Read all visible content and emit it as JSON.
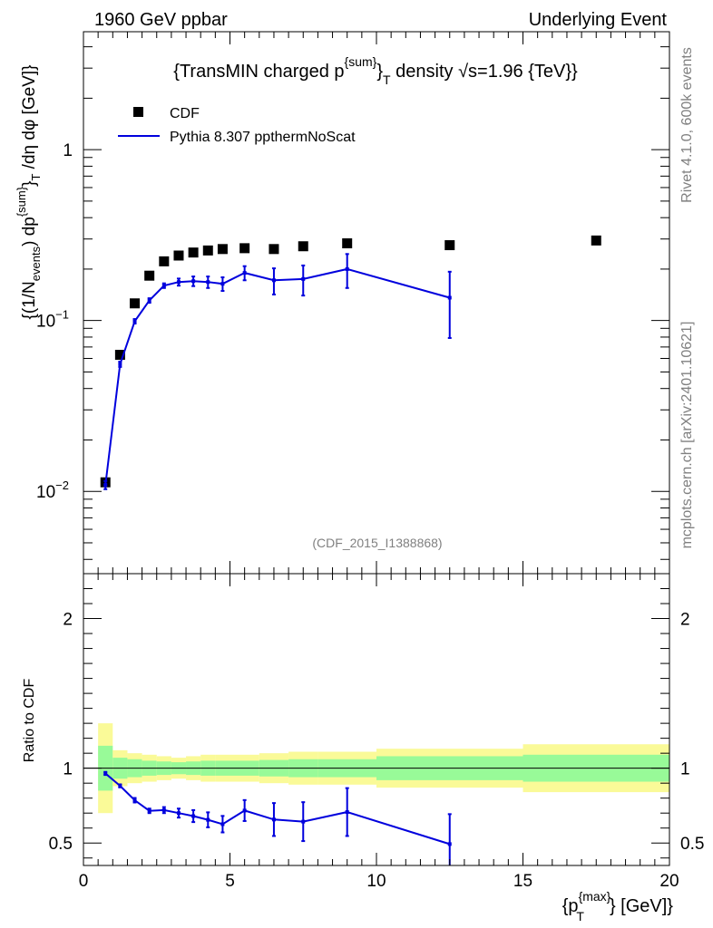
{
  "header": {
    "left": "1960 GeV ppbar",
    "right": "Underlying Event"
  },
  "side": {
    "rivet": "Rivet 4.1.0,  600k events",
    "mcplots": "mcplots.cern.ch [arXiv:2401.10621]"
  },
  "legend": {
    "cdf": "CDF",
    "pythia": "Pythia 8.307 ppthermNoScat"
  },
  "colors": {
    "mc": "#0000dd",
    "band_inner": "#98fa98",
    "band_outer": "#fafa98"
  },
  "chart_data": [
    {
      "type": "scatter",
      "title_parts": {
        "pre": "{TransMIN charged p",
        "sup": "{sum}",
        "mid": "}",
        "sub": "T",
        "post": " density ",
        "sqrt": "√s=1.96 {TeV}}"
      },
      "watermark": "(CDF_2015_I1388868)",
      "ylabel": "{(1/N_events) dp^{sum}}_T /dη dφ [GeV]}",
      "yscale": "log",
      "xlim": [
        0,
        20
      ],
      "ylim": [
        0.0033,
        4.9
      ],
      "ytick_labels": [
        "1",
        "10",
        "10"
      ],
      "ytick_exponents": [
        "",
        "−1",
        "−2"
      ],
      "series": [
        {
          "name": "CDF",
          "x": [
            0.75,
            1.25,
            1.75,
            2.25,
            2.75,
            3.25,
            3.75,
            4.25,
            4.75,
            5.5,
            6.5,
            7.5,
            9.0,
            12.5,
            17.5
          ],
          "y": [
            0.0113,
            0.063,
            0.126,
            0.183,
            0.222,
            0.24,
            0.25,
            0.257,
            0.262,
            0.265,
            0.262,
            0.272,
            0.283,
            0.276,
            0.294
          ]
        },
        {
          "name": "Pythia 8.307 ppthermNoScat",
          "x": [
            0.75,
            1.25,
            1.75,
            2.25,
            2.75,
            3.25,
            3.75,
            4.25,
            4.75,
            5.5,
            6.5,
            7.5,
            9.0,
            12.5
          ],
          "y": [
            0.0109,
            0.0555,
            0.099,
            0.131,
            0.16,
            0.168,
            0.17,
            0.168,
            0.164,
            0.19,
            0.172,
            0.175,
            0.2,
            0.136
          ],
          "yerr": [
            0.0006,
            0.002,
            0.003,
            0.004,
            0.005,
            0.008,
            0.011,
            0.013,
            0.015,
            0.018,
            0.03,
            0.035,
            0.045,
            0.057
          ]
        }
      ]
    },
    {
      "type": "line",
      "ylabel": "Ratio to CDF",
      "xlabel_parts": {
        "pre": "{p",
        "sup": "{max}",
        "sub": "T",
        "post": "} [GeV]}"
      },
      "xlim": [
        0,
        20
      ],
      "ylim": [
        0.35,
        2.3
      ],
      "xtick_labels": [
        "0",
        "5",
        "10",
        "15",
        "20"
      ],
      "ytick_labels": [
        "0.5",
        "1",
        "2"
      ],
      "reference_line": 1.0,
      "bands": {
        "edges": [
          0.5,
          1.0,
          1.5,
          2.0,
          2.5,
          3.0,
          3.5,
          4.0,
          4.5,
          5.0,
          6.0,
          7.0,
          8.0,
          10.0,
          15.0,
          20.0
        ],
        "inner": [
          0.15,
          0.07,
          0.06,
          0.05,
          0.045,
          0.04,
          0.045,
          0.05,
          0.05,
          0.05,
          0.055,
          0.06,
          0.06,
          0.08,
          0.09
        ],
        "outer": [
          0.3,
          0.12,
          0.1,
          0.09,
          0.08,
          0.07,
          0.08,
          0.09,
          0.09,
          0.09,
          0.1,
          0.11,
          0.11,
          0.13,
          0.16
        ]
      },
      "series": [
        {
          "name": "Pythia 8.307 ppthermNoScat / CDF",
          "x": [
            0.75,
            1.25,
            1.75,
            2.25,
            2.75,
            3.25,
            3.75,
            4.25,
            4.75,
            5.5,
            6.5,
            7.5,
            9.0,
            12.5
          ],
          "y": [
            0.965,
            0.882,
            0.786,
            0.715,
            0.72,
            0.7,
            0.68,
            0.655,
            0.626,
            0.717,
            0.657,
            0.643,
            0.707,
            0.493
          ],
          "yerr": [
            0.01,
            0.01,
            0.015,
            0.015,
            0.02,
            0.03,
            0.04,
            0.05,
            0.055,
            0.07,
            0.11,
            0.13,
            0.16,
            0.2
          ]
        }
      ]
    }
  ]
}
